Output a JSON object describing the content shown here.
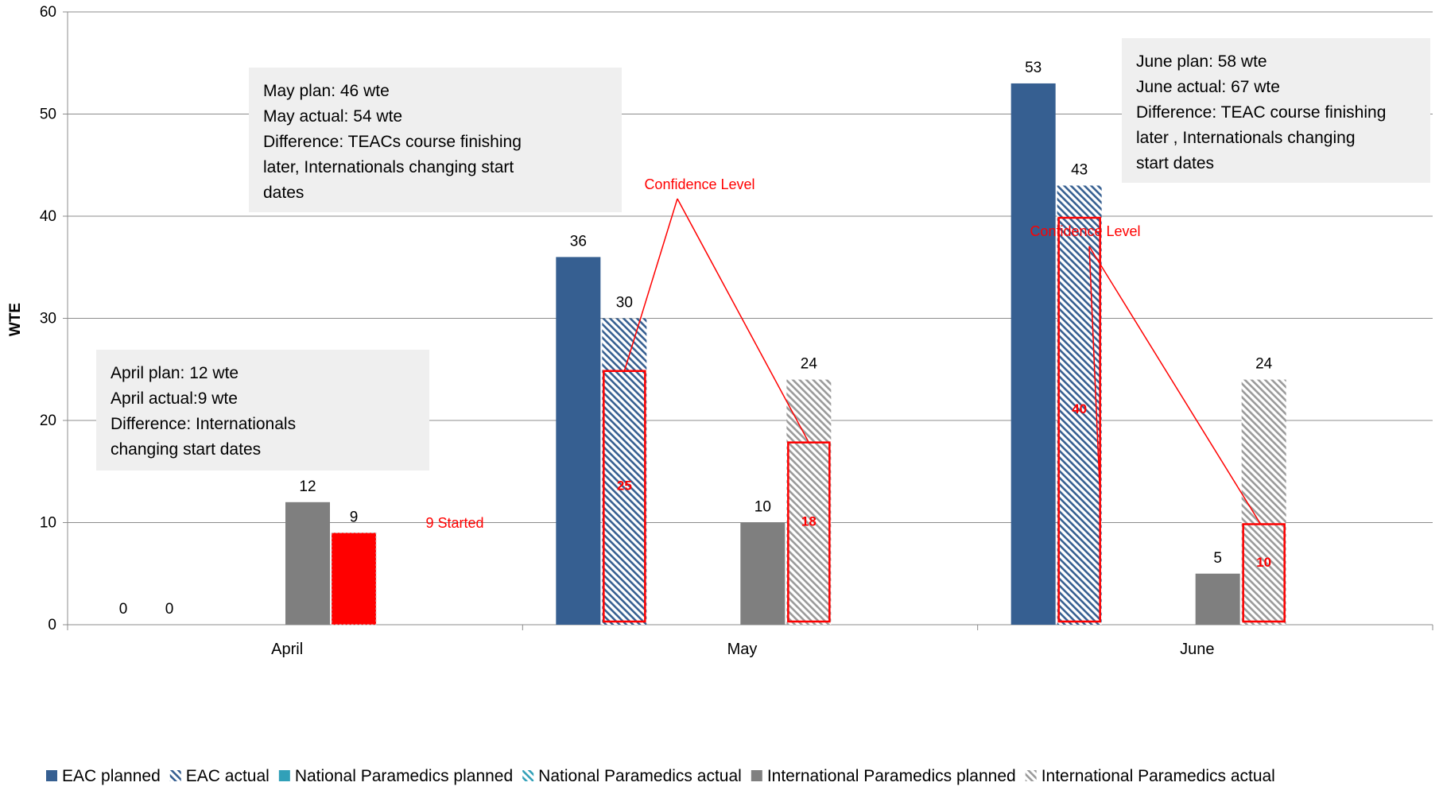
{
  "colors": {
    "eac": "#365f91",
    "national": "#31a0b8",
    "international": "#7f7f7f",
    "highlight": "#ff0000",
    "callout_bg": "#efefef",
    "grid": "#8c8c8c"
  },
  "chart_data": {
    "type": "bar",
    "ylabel": "WTE",
    "ylim": [
      0,
      60
    ],
    "yticks": [
      0,
      10,
      20,
      30,
      40,
      50,
      60
    ],
    "grid": true,
    "legend_position": "bottom",
    "categories": [
      "April",
      "May",
      "June"
    ],
    "series": [
      {
        "name": "EAC planned",
        "key": "eac_planned",
        "style": "solid",
        "color": "#365f91",
        "values": [
          0,
          36,
          53
        ]
      },
      {
        "name": "EAC actual",
        "key": "eac_actual",
        "style": "hatch",
        "color": "#365f91",
        "values": [
          0,
          30,
          43
        ]
      },
      {
        "name": "National Paramedics planned",
        "key": "nat_planned",
        "style": "solid",
        "color": "#31a0b8",
        "values": [
          null,
          null,
          null
        ]
      },
      {
        "name": "National Paramedics actual",
        "key": "nat_actual",
        "style": "hatch",
        "color": "#31a0b8",
        "values": [
          null,
          null,
          null
        ]
      },
      {
        "name": "International Paramedics planned",
        "key": "int_planned",
        "style": "solid",
        "color": "#7f7f7f",
        "values": [
          12,
          10,
          5
        ]
      },
      {
        "name": "International Paramedics actual",
        "key": "int_actual",
        "style": "hatch",
        "color": "#7f7f7f",
        "values": [
          9,
          24,
          24
        ]
      }
    ],
    "confidence_levels": [
      {
        "category": "April",
        "series": "int_actual",
        "value": 9
      },
      {
        "category": "May",
        "series": "eac_actual",
        "value": 25
      },
      {
        "category": "May",
        "series": "int_actual",
        "value": 18
      },
      {
        "category": "June",
        "series": "eac_actual",
        "value": 40
      },
      {
        "category": "June",
        "series": "int_actual",
        "value": 10
      }
    ],
    "annotations": {
      "started": "9 Started",
      "confidence_label": "Confidence Level",
      "april_box": [
        "April plan: 12 wte",
        "April actual:9 wte",
        "Difference: Internationals",
        "changing start dates"
      ],
      "may_box": [
        "May plan: 46  wte",
        "May actual: 54 wte",
        "Difference: TEACs course finishing",
        "later, Internationals changing start",
        "dates"
      ],
      "june_box": [
        "June plan: 58 wte",
        "June actual: 67 wte",
        "Difference: TEAC course finishing",
        "later , Internationals changing",
        "start dates"
      ]
    }
  }
}
